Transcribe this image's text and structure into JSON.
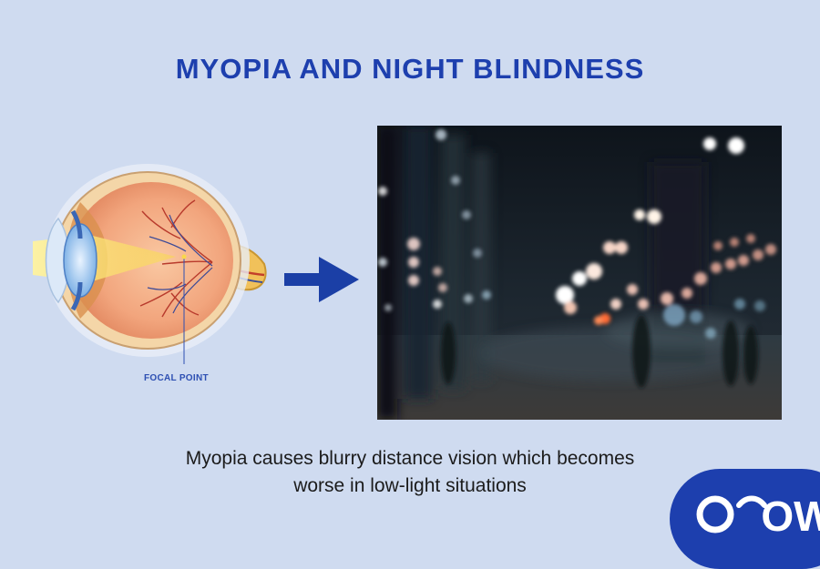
{
  "header": {
    "title": "MYOPIA AND NIGHT BLINDNESS"
  },
  "eye_diagram": {
    "focal_label": "FOCAL POINT"
  },
  "caption": {
    "line1": "Myopia causes blurry distance vision which becomes",
    "line2": "worse in low-light situations"
  },
  "logo": {
    "text": "OW"
  },
  "colors": {
    "background": "#cfdbf0",
    "title": "#1d3fae",
    "arrow": "#1b3fa6",
    "logo_bg": "#1d3fae"
  },
  "icons": [
    "eye-anatomy-icon",
    "right-arrow-icon",
    "night-street-photo",
    "ow-logo-icon"
  ]
}
